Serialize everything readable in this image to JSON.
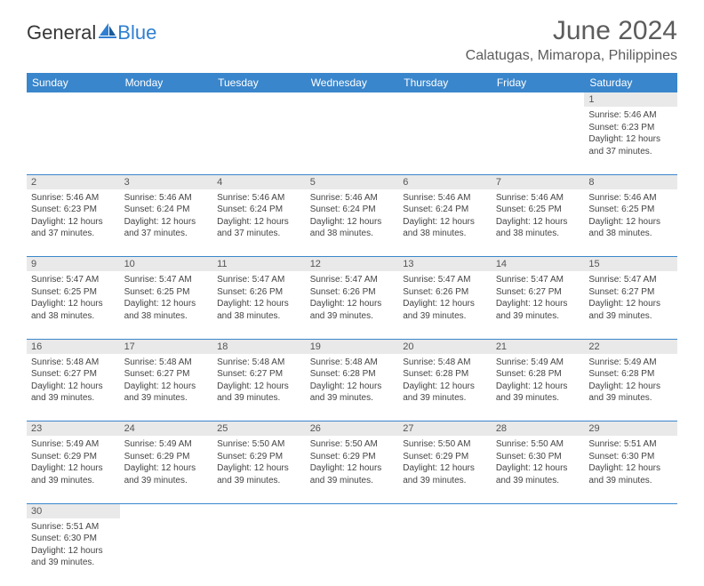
{
  "header": {
    "logo_text_1": "General",
    "logo_text_2": "Blue",
    "title": "June 2024",
    "location": "Calatugas, Mimaropa, Philippines"
  },
  "colors": {
    "header_bg": "#3a86cc",
    "header_text": "#ffffff",
    "daynum_bg": "#e9e9e9",
    "border": "#3a86cc",
    "logo_blue": "#2f7fd1"
  },
  "weekdays": [
    "Sunday",
    "Monday",
    "Tuesday",
    "Wednesday",
    "Thursday",
    "Friday",
    "Saturday"
  ],
  "weeks": [
    {
      "nums": [
        "",
        "",
        "",
        "",
        "",
        "",
        "1"
      ],
      "cells": [
        "",
        "",
        "",
        "",
        "",
        "",
        "Sunrise: 5:46 AM\nSunset: 6:23 PM\nDaylight: 12 hours and 37 minutes."
      ]
    },
    {
      "nums": [
        "2",
        "3",
        "4",
        "5",
        "6",
        "7",
        "8"
      ],
      "cells": [
        "Sunrise: 5:46 AM\nSunset: 6:23 PM\nDaylight: 12 hours and 37 minutes.",
        "Sunrise: 5:46 AM\nSunset: 6:24 PM\nDaylight: 12 hours and 37 minutes.",
        "Sunrise: 5:46 AM\nSunset: 6:24 PM\nDaylight: 12 hours and 37 minutes.",
        "Sunrise: 5:46 AM\nSunset: 6:24 PM\nDaylight: 12 hours and 38 minutes.",
        "Sunrise: 5:46 AM\nSunset: 6:24 PM\nDaylight: 12 hours and 38 minutes.",
        "Sunrise: 5:46 AM\nSunset: 6:25 PM\nDaylight: 12 hours and 38 minutes.",
        "Sunrise: 5:46 AM\nSunset: 6:25 PM\nDaylight: 12 hours and 38 minutes."
      ]
    },
    {
      "nums": [
        "9",
        "10",
        "11",
        "12",
        "13",
        "14",
        "15"
      ],
      "cells": [
        "Sunrise: 5:47 AM\nSunset: 6:25 PM\nDaylight: 12 hours and 38 minutes.",
        "Sunrise: 5:47 AM\nSunset: 6:25 PM\nDaylight: 12 hours and 38 minutes.",
        "Sunrise: 5:47 AM\nSunset: 6:26 PM\nDaylight: 12 hours and 38 minutes.",
        "Sunrise: 5:47 AM\nSunset: 6:26 PM\nDaylight: 12 hours and 39 minutes.",
        "Sunrise: 5:47 AM\nSunset: 6:26 PM\nDaylight: 12 hours and 39 minutes.",
        "Sunrise: 5:47 AM\nSunset: 6:27 PM\nDaylight: 12 hours and 39 minutes.",
        "Sunrise: 5:47 AM\nSunset: 6:27 PM\nDaylight: 12 hours and 39 minutes."
      ]
    },
    {
      "nums": [
        "16",
        "17",
        "18",
        "19",
        "20",
        "21",
        "22"
      ],
      "cells": [
        "Sunrise: 5:48 AM\nSunset: 6:27 PM\nDaylight: 12 hours and 39 minutes.",
        "Sunrise: 5:48 AM\nSunset: 6:27 PM\nDaylight: 12 hours and 39 minutes.",
        "Sunrise: 5:48 AM\nSunset: 6:27 PM\nDaylight: 12 hours and 39 minutes.",
        "Sunrise: 5:48 AM\nSunset: 6:28 PM\nDaylight: 12 hours and 39 minutes.",
        "Sunrise: 5:48 AM\nSunset: 6:28 PM\nDaylight: 12 hours and 39 minutes.",
        "Sunrise: 5:49 AM\nSunset: 6:28 PM\nDaylight: 12 hours and 39 minutes.",
        "Sunrise: 5:49 AM\nSunset: 6:28 PM\nDaylight: 12 hours and 39 minutes."
      ]
    },
    {
      "nums": [
        "23",
        "24",
        "25",
        "26",
        "27",
        "28",
        "29"
      ],
      "cells": [
        "Sunrise: 5:49 AM\nSunset: 6:29 PM\nDaylight: 12 hours and 39 minutes.",
        "Sunrise: 5:49 AM\nSunset: 6:29 PM\nDaylight: 12 hours and 39 minutes.",
        "Sunrise: 5:50 AM\nSunset: 6:29 PM\nDaylight: 12 hours and 39 minutes.",
        "Sunrise: 5:50 AM\nSunset: 6:29 PM\nDaylight: 12 hours and 39 minutes.",
        "Sunrise: 5:50 AM\nSunset: 6:29 PM\nDaylight: 12 hours and 39 minutes.",
        "Sunrise: 5:50 AM\nSunset: 6:30 PM\nDaylight: 12 hours and 39 minutes.",
        "Sunrise: 5:51 AM\nSunset: 6:30 PM\nDaylight: 12 hours and 39 minutes."
      ]
    },
    {
      "nums": [
        "30",
        "",
        "",
        "",
        "",
        "",
        ""
      ],
      "cells": [
        "Sunrise: 5:51 AM\nSunset: 6:30 PM\nDaylight: 12 hours and 39 minutes.",
        "",
        "",
        "",
        "",
        "",
        ""
      ]
    }
  ]
}
